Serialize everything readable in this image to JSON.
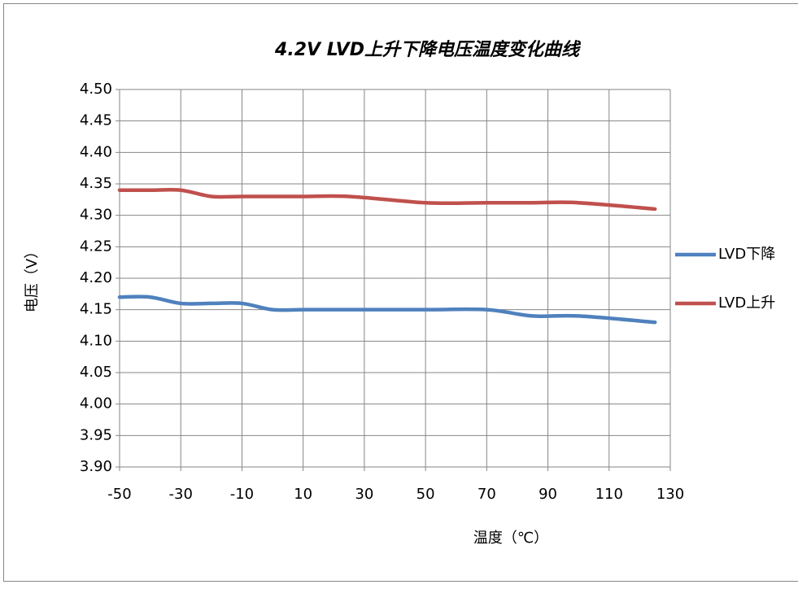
{
  "chart_data": {
    "type": "line",
    "title": "4.2V   LVD上升下降电压温度变化曲线",
    "x_label": "温度（℃）",
    "y_label": "电压（V）",
    "x": [
      -50,
      -40,
      -30,
      -20,
      -10,
      0,
      10,
      25,
      50,
      70,
      85,
      100,
      125
    ],
    "series": [
      {
        "name": "LVD下降",
        "color": "#4f81bd",
        "values": [
          4.17,
          4.17,
          4.16,
          4.16,
          4.16,
          4.15,
          4.15,
          4.15,
          4.15,
          4.15,
          4.14,
          4.14,
          4.13
        ]
      },
      {
        "name": "LVD上升",
        "color": "#c0504d",
        "values": [
          4.34,
          4.34,
          4.34,
          4.33,
          4.33,
          4.33,
          4.33,
          4.33,
          4.32,
          4.32,
          4.32,
          4.32,
          4.31
        ]
      }
    ],
    "xlim": [
      -50,
      130
    ],
    "xticks": [
      -50,
      -30,
      -10,
      10,
      30,
      50,
      70,
      90,
      110,
      130
    ],
    "ylim": [
      3.9,
      4.5
    ],
    "yticks": [
      {
        "value": 3.9,
        "label": "3.90"
      },
      3.95,
      {
        "value": 4.0,
        "label": "4.00"
      },
      4.05,
      {
        "value": 4.1,
        "label": "4.10"
      },
      4.15,
      {
        "value": 4.2,
        "label": "4.20"
      },
      4.25,
      {
        "value": 4.3,
        "label": "4.30"
      },
      4.35,
      {
        "value": 4.4,
        "label": "4.40"
      },
      4.45,
      {
        "value": 4.5,
        "label": "4.50"
      }
    ],
    "grid": true,
    "legend": "right"
  }
}
